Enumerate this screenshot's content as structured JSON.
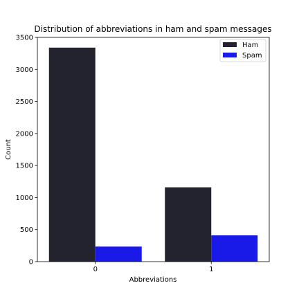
{
  "chart_data": {
    "type": "bar",
    "title": "Distribution of abbreviations in ham and spam messages",
    "xlabel": "Abbreviations",
    "ylabel": "Count",
    "categories": [
      "0",
      "1"
    ],
    "ylim": [
      0,
      3500
    ],
    "yticks": [
      0,
      500,
      1000,
      1500,
      2000,
      2500,
      3000,
      3500
    ],
    "ytick_labels": [
      "0",
      "500",
      "1000",
      "1500",
      "2000",
      "2500",
      "3000",
      "3500"
    ],
    "grid": false,
    "legend_position": "top-right",
    "series": [
      {
        "name": "Ham",
        "color": "#23232f",
        "values": [
          3340,
          1160
        ]
      },
      {
        "name": "Spam",
        "color": "#1a1ae8",
        "values": [
          235,
          410
        ]
      }
    ]
  }
}
